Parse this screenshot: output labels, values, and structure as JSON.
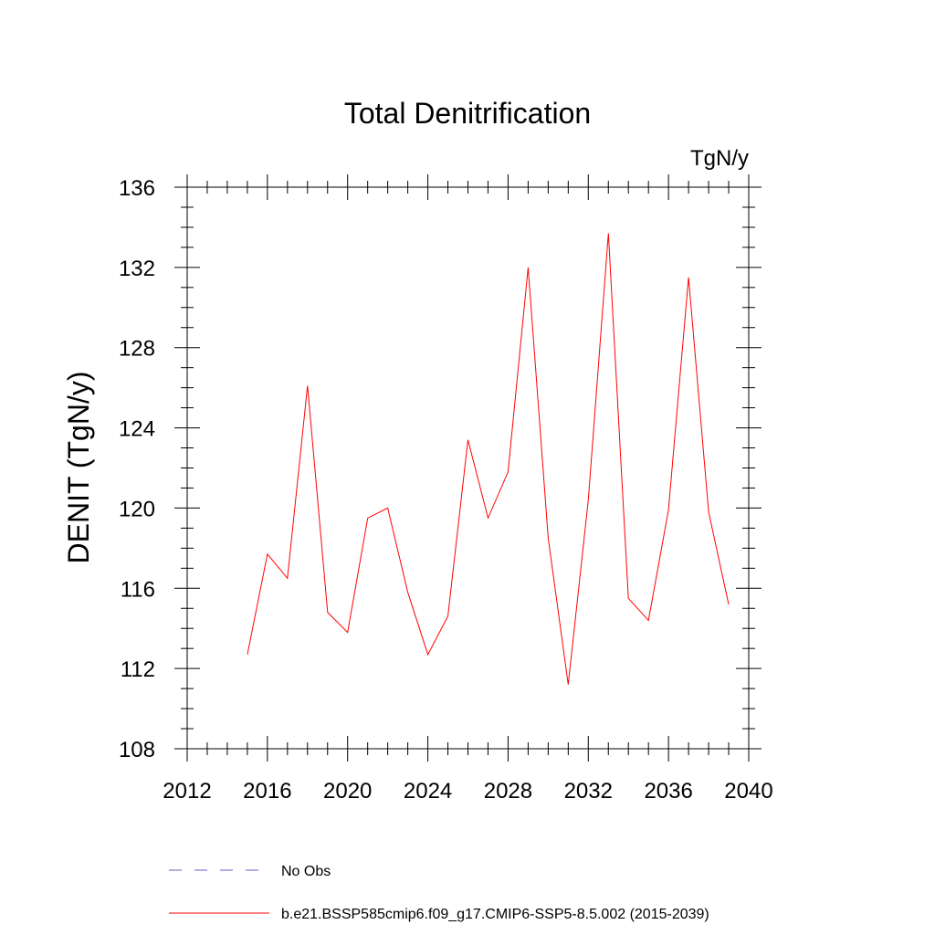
{
  "chart_data": {
    "type": "line",
    "title": "Total Denitrification",
    "units_label": "TgN/y",
    "ylabel": "DENIT  (TgN/y)",
    "xlabel": "",
    "xlim": [
      2012,
      2040
    ],
    "ylim": [
      108,
      136
    ],
    "x_ticks": [
      2012,
      2016,
      2020,
      2024,
      2028,
      2032,
      2036,
      2040
    ],
    "y_ticks": [
      108,
      112,
      116,
      120,
      124,
      128,
      132,
      136
    ],
    "grid": false,
    "legend_position": "bottom",
    "series": [
      {
        "name": "b.e21.BSSP585cmip6.f09_g17.CMIP6-SSP5-8.5.002 (2015-2039)",
        "color": "#ff0000",
        "x": [
          2015,
          2016,
          2017,
          2018,
          2019,
          2020,
          2021,
          2022,
          2023,
          2024,
          2025,
          2026,
          2027,
          2028,
          2029,
          2030,
          2031,
          2032,
          2033,
          2034,
          2035,
          2036,
          2037,
          2038,
          2039
        ],
        "values": [
          112.7,
          117.7,
          116.5,
          126.1,
          114.8,
          113.8,
          119.5,
          120.0,
          115.8,
          112.7,
          114.6,
          123.4,
          119.5,
          121.8,
          132.0,
          118.5,
          111.2,
          120.4,
          133.7,
          115.5,
          114.4,
          119.9,
          131.5,
          119.8,
          115.2
        ]
      }
    ],
    "legend": [
      {
        "label": "No Obs",
        "color": "#6a5acd",
        "dash": true
      },
      {
        "label": "b.e21.BSSP585cmip6.f09_g17.CMIP6-SSP5-8.5.002 (2015-2039)",
        "color": "#ff0000",
        "dash": false
      }
    ]
  }
}
